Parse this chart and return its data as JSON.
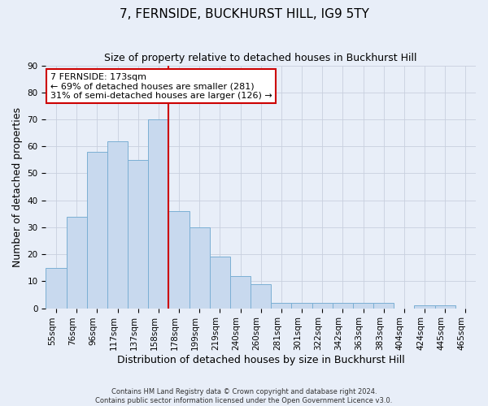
{
  "title": "7, FERNSIDE, BUCKHURST HILL, IG9 5TY",
  "subtitle": "Size of property relative to detached houses in Buckhurst Hill",
  "xlabel": "Distribution of detached houses by size in Buckhurst Hill",
  "ylabel": "Number of detached properties",
  "bar_labels": [
    "55sqm",
    "76sqm",
    "96sqm",
    "117sqm",
    "137sqm",
    "158sqm",
    "178sqm",
    "199sqm",
    "219sqm",
    "240sqm",
    "260sqm",
    "281sqm",
    "301sqm",
    "322sqm",
    "342sqm",
    "363sqm",
    "383sqm",
    "404sqm",
    "424sqm",
    "445sqm",
    "465sqm"
  ],
  "bar_values": [
    15,
    34,
    58,
    62,
    55,
    70,
    36,
    30,
    19,
    12,
    9,
    2,
    2,
    2,
    2,
    2,
    2,
    0,
    1,
    1,
    0
  ],
  "bar_color": "#c8d9ee",
  "bar_edge_color": "#7bafd4",
  "vline_index": 6,
  "vline_color": "#cc0000",
  "ylim": [
    0,
    90
  ],
  "yticks": [
    0,
    10,
    20,
    30,
    40,
    50,
    60,
    70,
    80,
    90
  ],
  "annotation_title": "7 FERNSIDE: 173sqm",
  "annotation_line1": "← 69% of detached houses are smaller (281)",
  "annotation_line2": "31% of semi-detached houses are larger (126) →",
  "annotation_box_color": "#ffffff",
  "annotation_box_edge": "#cc0000",
  "footer_line1": "Contains HM Land Registry data © Crown copyright and database right 2024.",
  "footer_line2": "Contains public sector information licensed under the Open Government Licence v3.0.",
  "title_fontsize": 11,
  "subtitle_fontsize": 9,
  "axis_label_fontsize": 9,
  "tick_fontsize": 7.5,
  "annotation_fontsize": 8,
  "footer_fontsize": 6,
  "bg_color": "#e8eef8",
  "grid_color": "#c8d0de"
}
